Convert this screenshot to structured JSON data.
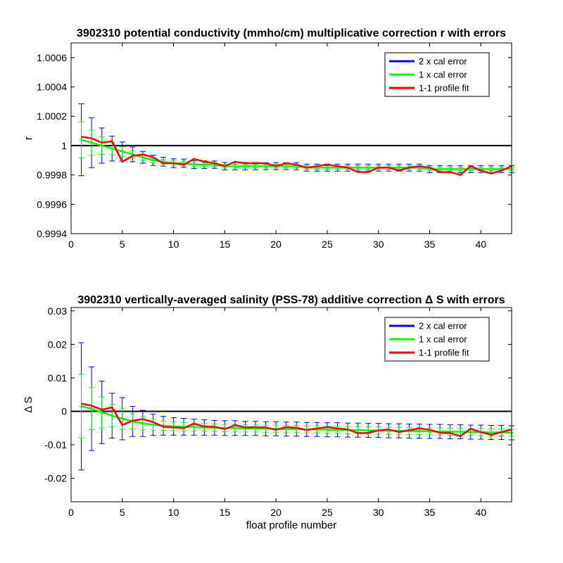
{
  "colors": {
    "two_cal": "#0000ff",
    "one_cal": "#00ff00",
    "fit": "#ff0000",
    "zero_line": "#000000"
  },
  "chart_data": [
    {
      "type": "line",
      "title": "3902310 potential conductivity (mmho/cm) multiplicative correction r with errors",
      "xlabel": "",
      "ylabel": "r",
      "xlim": [
        0,
        43
      ],
      "ylim": [
        0.9994,
        1.0007
      ],
      "xticks": [
        0,
        5,
        10,
        15,
        20,
        25,
        30,
        35,
        40
      ],
      "xtick_labels": [
        "0",
        "5",
        "10",
        "15",
        "20",
        "25",
        "30",
        "35",
        "40"
      ],
      "yticks": [
        0.9994,
        0.9996,
        0.9998,
        1.0,
        1.0002,
        1.0004,
        1.0006
      ],
      "ytick_labels": [
        "0.9994",
        "0.9996",
        "0.9998",
        "1",
        "1.0002",
        "1.0004",
        "1.0006"
      ],
      "reference_line": 1.0,
      "legend": {
        "placement": "top-right",
        "entries": [
          "2 x cal error",
          "1 x cal error",
          "1-1 profile fit"
        ]
      },
      "x": [
        1,
        2,
        3,
        4,
        5,
        6,
        7,
        8,
        9,
        10,
        11,
        12,
        13,
        14,
        15,
        16,
        17,
        18,
        19,
        20,
        21,
        22,
        23,
        24,
        25,
        26,
        27,
        28,
        29,
        30,
        31,
        32,
        33,
        34,
        35,
        36,
        37,
        38,
        39,
        40,
        41,
        42,
        43
      ],
      "series": [
        {
          "name": "1 x cal error",
          "values": [
            1.00004,
            1.00002,
            1.0,
            0.99998,
            0.99996,
            0.99994,
            0.99992,
            0.9999,
            0.99989,
            0.99988,
            0.99988,
            0.99987,
            0.99987,
            0.99987,
            0.99986,
            0.99986,
            0.99986,
            0.99986,
            0.99986,
            0.99986,
            0.99986,
            0.99986,
            0.99985,
            0.99985,
            0.99985,
            0.99985,
            0.99985,
            0.99985,
            0.99985,
            0.99985,
            0.99985,
            0.99985,
            0.99985,
            0.99985,
            0.99984,
            0.99984,
            0.99984,
            0.99984,
            0.99984,
            0.99984,
            0.99984,
            0.99984,
            0.99984
          ],
          "err2": [
            0.000245,
            0.00017,
            0.00012,
            8.5e-05,
            6.5e-05,
            5e-05,
            4e-05,
            3.5e-05,
            3e-05,
            3e-05,
            2.8e-05,
            2.7e-05,
            2.6e-05,
            2.5e-05,
            2.5e-05,
            2.5e-05,
            2.5e-05,
            2.5e-05,
            2.4e-05,
            2.4e-05,
            2.4e-05,
            2.4e-05,
            2.4e-05,
            2.4e-05,
            2.4e-05,
            2.4e-05,
            2.4e-05,
            2.4e-05,
            2.4e-05,
            2.4e-05,
            2.4e-05,
            2.4e-05,
            2.4e-05,
            2.4e-05,
            2.4e-05,
            2.4e-05,
            2.4e-05,
            2.4e-05,
            2.4e-05,
            2.4e-05,
            2.4e-05,
            2.4e-05,
            2.4e-05
          ],
          "err1": [
            0.0001225,
            8.5e-05,
            6e-05,
            4.25e-05,
            3.25e-05,
            2.5e-05,
            2e-05,
            1.75e-05,
            1.5e-05,
            1.5e-05,
            1.4e-05,
            1.35e-05,
            1.3e-05,
            1.25e-05,
            1.25e-05,
            1.25e-05,
            1.25e-05,
            1.25e-05,
            1.2e-05,
            1.2e-05,
            1.2e-05,
            1.2e-05,
            1.2e-05,
            1.2e-05,
            1.2e-05,
            1.2e-05,
            1.2e-05,
            1.2e-05,
            1.2e-05,
            1.2e-05,
            1.2e-05,
            1.2e-05,
            1.2e-05,
            1.2e-05,
            1.2e-05,
            1.2e-05,
            1.2e-05,
            1.2e-05,
            1.2e-05,
            1.2e-05,
            1.2e-05,
            1.2e-05,
            1.2e-05
          ]
        },
        {
          "name": "1-1 profile fit",
          "values": [
            1.00006,
            1.00005,
            1.00002,
            1.00003,
            0.99989,
            0.99993,
            0.99994,
            0.99992,
            0.99988,
            0.99988,
            0.99987,
            0.99991,
            0.99989,
            0.99988,
            0.99986,
            0.99989,
            0.99988,
            0.99988,
            0.99988,
            0.99986,
            0.99988,
            0.99987,
            0.99985,
            0.99986,
            0.99987,
            0.99986,
            0.99985,
            0.99982,
            0.99982,
            0.99985,
            0.99985,
            0.99983,
            0.99985,
            0.99986,
            0.99985,
            0.99982,
            0.99982,
            0.9998,
            0.99986,
            0.99983,
            0.99981,
            0.99983,
            0.99986
          ]
        }
      ]
    },
    {
      "type": "line",
      "title": "3902310 vertically-averaged salinity (PSS-78) additive correction Δ S with errors",
      "xlabel": "float profile number",
      "ylabel": "Δ S",
      "xlim": [
        0,
        43
      ],
      "ylim": [
        -0.027,
        0.031
      ],
      "xticks": [
        0,
        5,
        10,
        15,
        20,
        25,
        30,
        35,
        40
      ],
      "xtick_labels": [
        "0",
        "5",
        "10",
        "15",
        "20",
        "25",
        "30",
        "35",
        "40"
      ],
      "yticks": [
        -0.02,
        -0.01,
        0.0,
        0.01,
        0.02,
        0.03
      ],
      "ytick_labels": [
        "-0.02",
        "-0.01",
        "0",
        "0.01",
        "0.02",
        "0.03"
      ],
      "reference_line": 0.0,
      "legend": {
        "placement": "top-right",
        "entries": [
          "2 x cal error",
          "1 x cal error",
          "1-1 profile fit"
        ]
      },
      "x": [
        1,
        2,
        3,
        4,
        5,
        6,
        7,
        8,
        9,
        10,
        11,
        12,
        13,
        14,
        15,
        16,
        17,
        18,
        19,
        20,
        21,
        22,
        23,
        24,
        25,
        26,
        27,
        28,
        29,
        30,
        31,
        32,
        33,
        34,
        35,
        36,
        37,
        38,
        39,
        40,
        41,
        42,
        43
      ],
      "series": [
        {
          "name": "1 x cal error",
          "values": [
            0.0015,
            0.0008,
            -0.0003,
            -0.0013,
            -0.0022,
            -0.003,
            -0.0036,
            -0.004,
            -0.0043,
            -0.0045,
            -0.0046,
            -0.0047,
            -0.0048,
            -0.0049,
            -0.005,
            -0.005,
            -0.0051,
            -0.0051,
            -0.0052,
            -0.0052,
            -0.0053,
            -0.0053,
            -0.0054,
            -0.0054,
            -0.0055,
            -0.0055,
            -0.0056,
            -0.0056,
            -0.0057,
            -0.0057,
            -0.0058,
            -0.0058,
            -0.0059,
            -0.0059,
            -0.006,
            -0.006,
            -0.0061,
            -0.0061,
            -0.0062,
            -0.0062,
            -0.0063,
            -0.0063,
            -0.0064
          ],
          "err2": [
            0.019,
            0.0125,
            0.0093,
            0.0067,
            0.0063,
            0.0045,
            0.0039,
            0.0032,
            0.0028,
            0.0026,
            0.0025,
            0.0024,
            0.0023,
            0.0022,
            0.0022,
            0.0022,
            0.0021,
            0.0021,
            0.0021,
            0.0021,
            0.0021,
            0.0021,
            0.0021,
            0.0021,
            0.0021,
            0.0021,
            0.0021,
            0.0021,
            0.0021,
            0.0021,
            0.0021,
            0.0021,
            0.0021,
            0.0021,
            0.0021,
            0.0021,
            0.0021,
            0.0021,
            0.0021,
            0.0021,
            0.0021,
            0.0021,
            0.0021
          ],
          "err1": [
            0.0095,
            0.00625,
            0.00465,
            0.00335,
            0.00315,
            0.00225,
            0.00195,
            0.0016,
            0.0014,
            0.0013,
            0.00125,
            0.0012,
            0.00115,
            0.0011,
            0.0011,
            0.0011,
            0.00105,
            0.00105,
            0.00105,
            0.00105,
            0.00105,
            0.00105,
            0.00105,
            0.00105,
            0.00105,
            0.00105,
            0.00105,
            0.00105,
            0.00105,
            0.00105,
            0.00105,
            0.00105,
            0.00105,
            0.00105,
            0.00105,
            0.00105,
            0.00105,
            0.00105,
            0.00105,
            0.00105,
            0.00105,
            0.00105,
            0.00105
          ]
        },
        {
          "name": "1-1 profile fit",
          "values": [
            0.0023,
            0.0017,
            0.0005,
            0.0012,
            -0.0041,
            -0.0028,
            -0.0023,
            -0.0032,
            -0.0046,
            -0.0048,
            -0.005,
            -0.0037,
            -0.0045,
            -0.0046,
            -0.0053,
            -0.0041,
            -0.0048,
            -0.0047,
            -0.0048,
            -0.0055,
            -0.0047,
            -0.0049,
            -0.0056,
            -0.0051,
            -0.0047,
            -0.0051,
            -0.0054,
            -0.0065,
            -0.0064,
            -0.0057,
            -0.0054,
            -0.0062,
            -0.0056,
            -0.0051,
            -0.0055,
            -0.0064,
            -0.0065,
            -0.0074,
            -0.0052,
            -0.0062,
            -0.007,
            -0.0062,
            -0.0054
          ]
        }
      ]
    }
  ]
}
